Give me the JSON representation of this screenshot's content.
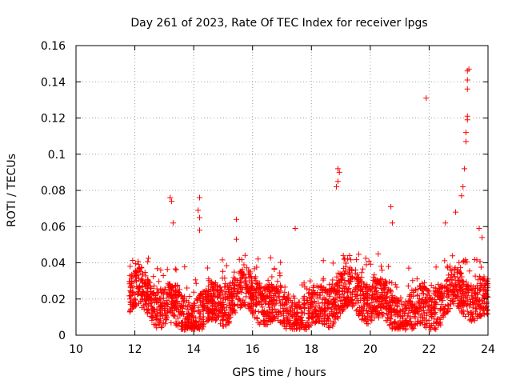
{
  "chart_data": {
    "type": "scatter",
    "title": "Day 261 of 2023, Rate Of TEC Index for receiver lpgs",
    "xlabel": "GPS time / hours",
    "ylabel": "ROTI / TECUs",
    "xlim": [
      10,
      24
    ],
    "ylim": [
      0,
      0.16
    ],
    "x_ticks": [
      10,
      12,
      14,
      16,
      18,
      20,
      22,
      24
    ],
    "x_tick_labels": [
      "10",
      "12",
      "14",
      "16",
      "18",
      "20",
      "22",
      "24"
    ],
    "y_ticks": [
      0,
      0.02,
      0.04,
      0.06,
      0.08,
      0.1,
      0.12,
      0.14,
      0.16
    ],
    "y_tick_labels": [
      "0",
      "0.02",
      "0.04",
      "0.06",
      "0.08",
      "0.1",
      "0.12",
      "0.14",
      "0.16"
    ],
    "grid": true,
    "marker": "+",
    "series": [
      {
        "name": "ROTI",
        "color": "#ff0000",
        "data_range": {
          "x_start": 11.8,
          "x_end": 24.0
        },
        "notable_points": [
          {
            "x": 13.2,
            "y": 0.076
          },
          {
            "x": 13.25,
            "y": 0.074
          },
          {
            "x": 13.3,
            "y": 0.062
          },
          {
            "x": 14.2,
            "y": 0.076
          },
          {
            "x": 14.15,
            "y": 0.069
          },
          {
            "x": 14.2,
            "y": 0.065
          },
          {
            "x": 14.2,
            "y": 0.058
          },
          {
            "x": 15.45,
            "y": 0.064
          },
          {
            "x": 15.45,
            "y": 0.053
          },
          {
            "x": 17.45,
            "y": 0.059
          },
          {
            "x": 18.9,
            "y": 0.092
          },
          {
            "x": 18.95,
            "y": 0.09
          },
          {
            "x": 18.9,
            "y": 0.085
          },
          {
            "x": 18.85,
            "y": 0.082
          },
          {
            "x": 20.7,
            "y": 0.071
          },
          {
            "x": 20.75,
            "y": 0.062
          },
          {
            "x": 21.9,
            "y": 0.131
          },
          {
            "x": 22.55,
            "y": 0.062
          },
          {
            "x": 22.9,
            "y": 0.068
          },
          {
            "x": 23.1,
            "y": 0.077
          },
          {
            "x": 23.15,
            "y": 0.082
          },
          {
            "x": 23.2,
            "y": 0.092
          },
          {
            "x": 23.25,
            "y": 0.107
          },
          {
            "x": 23.25,
            "y": 0.112
          },
          {
            "x": 23.3,
            "y": 0.119
          },
          {
            "x": 23.3,
            "y": 0.121
          },
          {
            "x": 23.3,
            "y": 0.136
          },
          {
            "x": 23.3,
            "y": 0.141
          },
          {
            "x": 23.3,
            "y": 0.146
          },
          {
            "x": 23.35,
            "y": 0.147
          },
          {
            "x": 23.7,
            "y": 0.059
          },
          {
            "x": 23.8,
            "y": 0.054
          }
        ],
        "bulk_summary": {
          "description": "dense cloud of ROTI values roughly between 0.005 and 0.045 from 11.8 h to 24 h, generated procedurally",
          "y_min": 0.003,
          "y_max": 0.045
        }
      }
    ]
  }
}
